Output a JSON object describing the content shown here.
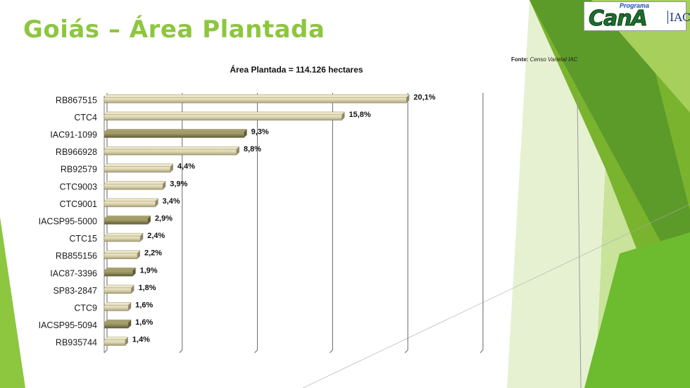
{
  "slide": {
    "title": "Goiás – Área Plantada",
    "source_label": "Fonte:",
    "source_value": "Censo Varietal IAC"
  },
  "logo": {
    "small_text": "Programa",
    "brand_text": "CanA",
    "suffix_text": "IAC"
  },
  "colors": {
    "title": "#8dc63f",
    "bar_light": "#d6cfaa",
    "bar_dark": "#8c8757",
    "green_dark": "#4e8a1f",
    "green_mid": "#7ab32e",
    "green_light": "#c9e39a"
  },
  "chart_data": {
    "type": "bar",
    "orientation": "horizontal",
    "title": "Área Plantada = 114.126 hectares",
    "categories": [
      "RB867515",
      "CTC4",
      "IAC91-1099",
      "RB966928",
      "RB92579",
      "CTC9003",
      "CTC9001",
      "IACSP95-5000",
      "CTC15",
      "RB855156",
      "IAC87-3396",
      "SP83-2847",
      "CTC9",
      "IACSP95-5094",
      "RB935744"
    ],
    "values": [
      20.1,
      15.8,
      9.3,
      8.8,
      4.4,
      3.9,
      3.4,
      2.9,
      2.4,
      2.2,
      1.9,
      1.8,
      1.6,
      1.6,
      1.4
    ],
    "value_labels": [
      "20,1%",
      "15,8%",
      "9,3%",
      "8,8%",
      "4,4%",
      "3,9%",
      "3,4%",
      "2,9%",
      "2,4%",
      "2,2%",
      "1,9%",
      "1,8%",
      "1,6%",
      "1,6%",
      "1,4%"
    ],
    "highlighted": [
      false,
      false,
      true,
      false,
      false,
      false,
      false,
      true,
      false,
      false,
      true,
      false,
      false,
      true,
      false
    ],
    "xlim": [
      0,
      25
    ],
    "grid": true
  }
}
